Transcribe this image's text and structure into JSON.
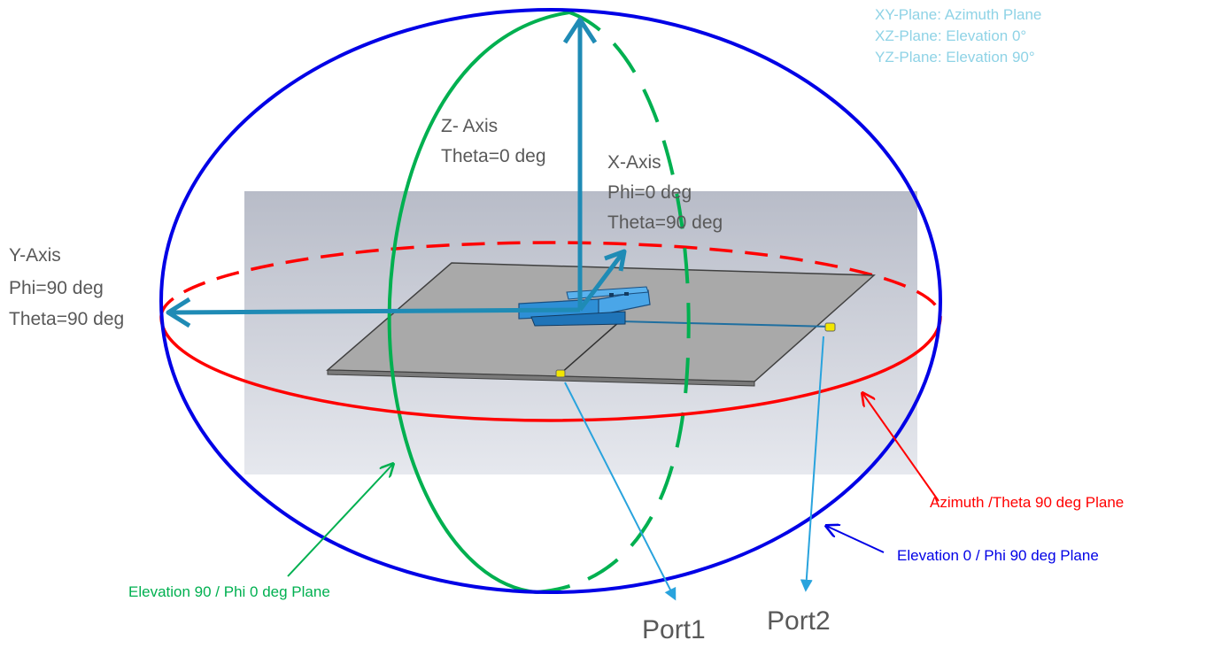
{
  "legend": {
    "xy_plane": "XY-Plane: Azimuth Plane",
    "xz_plane": "XZ-Plane: Elevation 0°",
    "yz_plane": "YZ-Plane: Elevation 90°"
  },
  "axes": {
    "z_axis": {
      "name": "Z- Axis",
      "angle": "Theta=0 deg"
    },
    "x_axis": {
      "name": "X-Axis",
      "phi": "Phi=0 deg",
      "theta": "Theta=90 deg"
    },
    "y_axis": {
      "name": "Y-Axis",
      "phi": "Phi=90 deg",
      "theta": "Theta=90 deg"
    }
  },
  "planes": {
    "azimuth": {
      "label": "Azimuth /Theta 90 deg Plane",
      "color": "#ff0000"
    },
    "elevation_0": {
      "label": "Elevation 0 / Phi 90 deg Plane",
      "color": "#0000e6"
    },
    "elevation_90": {
      "label": "Elevation 90 / Phi 0 deg Plane",
      "color": "#00b050"
    }
  },
  "ports": {
    "port1": "Port1",
    "port2": "Port2"
  },
  "colors": {
    "axis_arrow": "#1f8bb5",
    "port_leader": "#29a3dd",
    "axis_text": "#595959",
    "legend_text": "#8fd3e6"
  }
}
